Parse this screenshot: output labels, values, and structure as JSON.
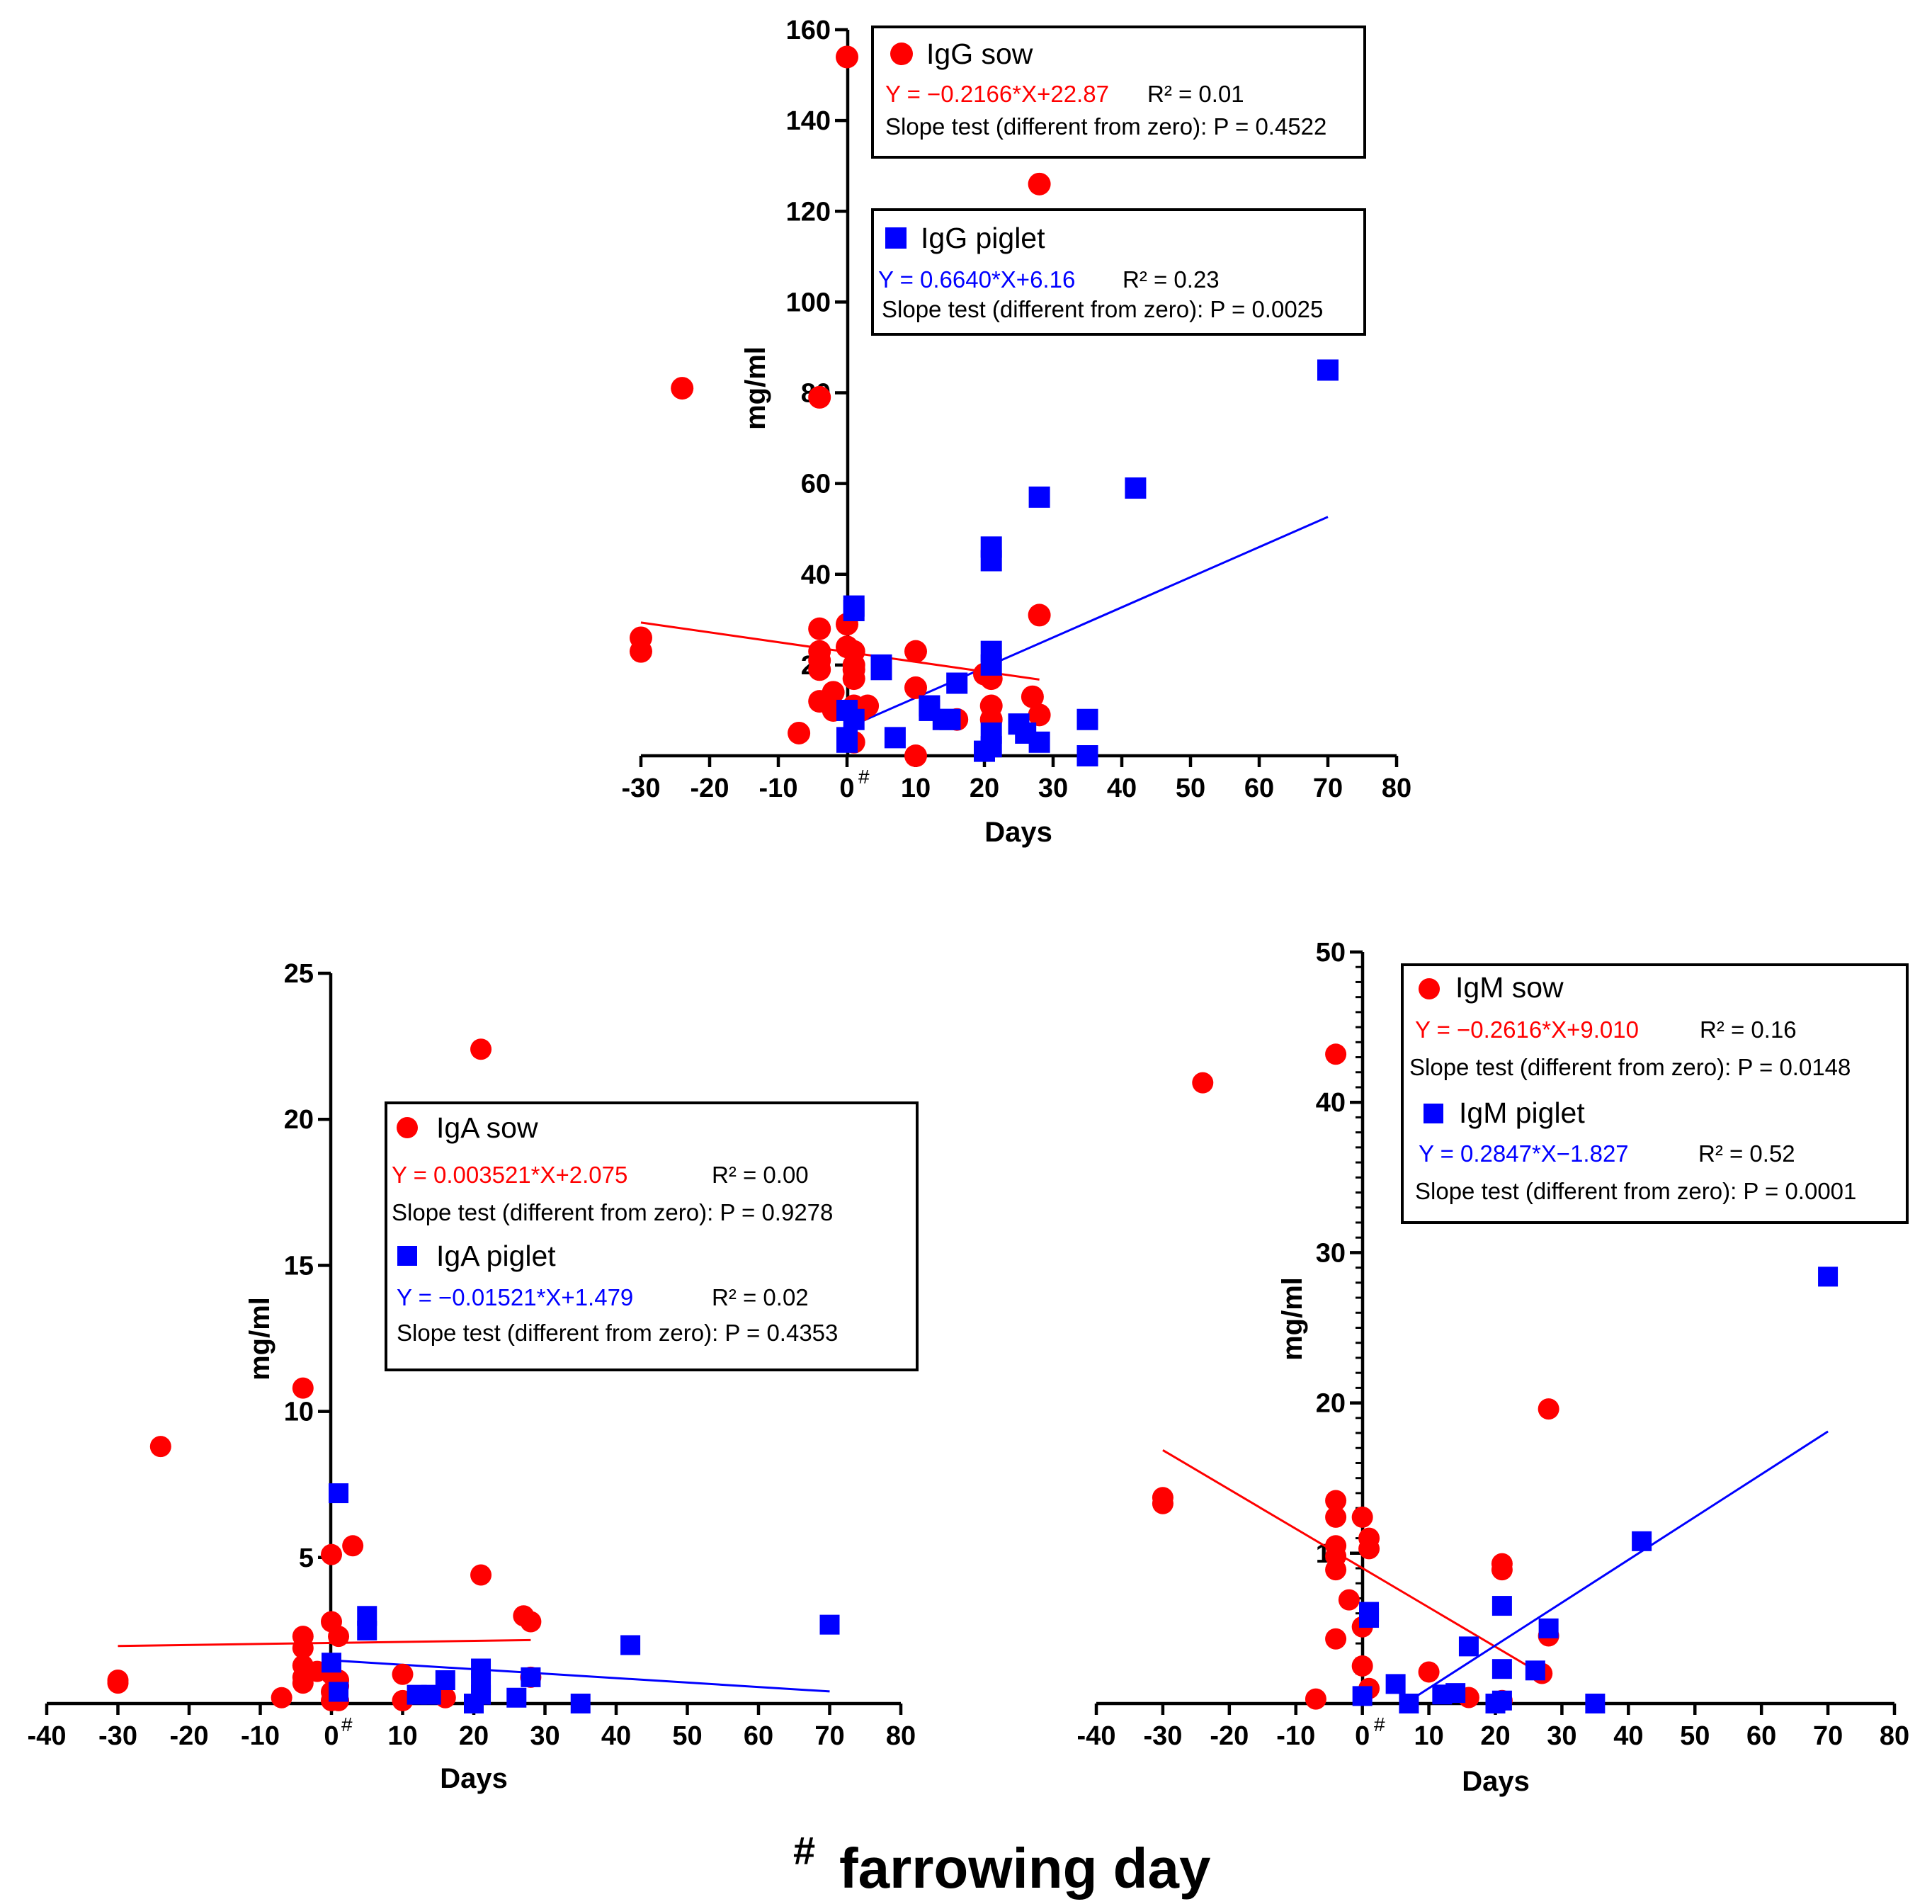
{
  "colors": {
    "sow": "#ff0000",
    "piglet": "#0000ff",
    "axis": "#000000"
  },
  "footnote": {
    "symbol": "#",
    "text": "farrowing day"
  },
  "chart_data": [
    {
      "id": "igg",
      "type": "scatter",
      "xlabel": "Days",
      "ylabel": "mg/ml",
      "xlim": [
        -30,
        80
      ],
      "ylim": [
        0,
        160
      ],
      "xticks": [
        -30,
        -20,
        -10,
        0,
        10,
        20,
        30,
        40,
        50,
        60,
        70,
        80
      ],
      "yticks": [
        20,
        40,
        60,
        80,
        100,
        120,
        140,
        160
      ],
      "yminor": 0,
      "zero_mark": "#",
      "series": [
        {
          "name": "IgG sow",
          "marker": "circle",
          "color": "#ff0000",
          "equation": "Y = −0.2166*X+22.87",
          "r2": "R² = 0.01",
          "slope_test": "Slope test (different from zero): P = 0.4522",
          "fit": {
            "slope": -0.2166,
            "intercept": 22.87,
            "x_range": [
              -30,
              28
            ]
          },
          "points": [
            [
              -30,
              26
            ],
            [
              -30,
              23
            ],
            [
              -24,
              81
            ],
            [
              -7,
              5
            ],
            [
              -4,
              79
            ],
            [
              -4,
              28
            ],
            [
              -4,
              23
            ],
            [
              -4,
              21
            ],
            [
              -4,
              19
            ],
            [
              -4,
              12
            ],
            [
              -2,
              14
            ],
            [
              -2,
              10
            ],
            [
              0,
              154
            ],
            [
              0,
              29
            ],
            [
              0,
              24
            ],
            [
              1,
              23
            ],
            [
              1,
              20
            ],
            [
              1,
              19
            ],
            [
              1,
              17
            ],
            [
              1,
              11
            ],
            [
              1,
              9
            ],
            [
              1,
              3
            ],
            [
              2,
              10
            ],
            [
              3,
              11
            ],
            [
              10,
              23
            ],
            [
              10,
              15
            ],
            [
              10,
              0
            ],
            [
              16,
              8
            ],
            [
              20,
              18
            ],
            [
              21,
              17
            ],
            [
              21,
              11
            ],
            [
              21,
              8
            ],
            [
              27,
              13
            ],
            [
              28,
              126
            ],
            [
              28,
              31
            ],
            [
              28,
              9
            ]
          ]
        },
        {
          "name": "IgG piglet",
          "marker": "square",
          "color": "#0000ff",
          "equation": "Y = 0.6640*X+6.16",
          "r2": "R² = 0.23",
          "slope_test": "Slope test (different from zero): P = 0.0025",
          "fit": {
            "slope": 0.664,
            "intercept": 6.16,
            "x_range": [
              0,
              70
            ]
          },
          "points": [
            [
              0,
              10
            ],
            [
              0,
              4
            ],
            [
              0,
              3
            ],
            [
              1,
              33
            ],
            [
              1,
              32
            ],
            [
              1,
              8
            ],
            [
              5,
              20
            ],
            [
              5,
              19
            ],
            [
              7,
              4
            ],
            [
              12,
              10
            ],
            [
              12,
              11
            ],
            [
              14,
              8
            ],
            [
              15,
              8
            ],
            [
              16,
              16
            ],
            [
              20,
              1
            ],
            [
              21,
              46
            ],
            [
              21,
              43
            ],
            [
              21,
              23
            ],
            [
              21,
              20
            ],
            [
              21,
              5
            ],
            [
              21,
              2
            ],
            [
              25,
              7
            ],
            [
              26,
              5
            ],
            [
              28,
              57
            ],
            [
              28,
              3
            ],
            [
              35,
              8
            ],
            [
              35,
              0
            ],
            [
              42,
              59
            ],
            [
              70,
              85
            ]
          ]
        }
      ]
    },
    {
      "id": "iga",
      "type": "scatter",
      "xlabel": "Days",
      "ylabel": "mg/ml",
      "xlim": [
        -40,
        80
      ],
      "ylim": [
        0,
        25
      ],
      "xticks": [
        -40,
        -30,
        -20,
        -10,
        0,
        10,
        20,
        30,
        40,
        50,
        60,
        70,
        80
      ],
      "yticks": [
        5,
        10,
        15,
        20,
        25
      ],
      "yminor": 0,
      "zero_mark": "#",
      "series": [
        {
          "name": "IgA sow",
          "marker": "circle",
          "color": "#ff0000",
          "equation": "Y = 0.003521*X+2.075",
          "r2": "R² = 0.00",
          "slope_test": "Slope test (different from zero): P = 0.9278",
          "fit": {
            "slope": 0.003521,
            "intercept": 2.075,
            "x_range": [
              -30,
              28
            ]
          },
          "points": [
            [
              -30,
              0.8
            ],
            [
              -30,
              0.7
            ],
            [
              -24,
              8.8
            ],
            [
              -7,
              0.2
            ],
            [
              -4,
              10.8
            ],
            [
              -4,
              2.3
            ],
            [
              -4,
              1.9
            ],
            [
              -4,
              1.3
            ],
            [
              -4,
              0.9
            ],
            [
              -4,
              0.7
            ],
            [
              -2,
              1.1
            ],
            [
              0,
              5.1
            ],
            [
              0,
              2.8
            ],
            [
              0,
              1.0
            ],
            [
              0,
              0.4
            ],
            [
              0,
              0.1
            ],
            [
              1,
              2.3
            ],
            [
              1,
              0.8
            ],
            [
              1,
              0.6
            ],
            [
              1,
              0.1
            ],
            [
              3,
              5.4
            ],
            [
              10,
              1.0
            ],
            [
              10,
              0.1
            ],
            [
              16,
              0.2
            ],
            [
              21,
              22.4
            ],
            [
              21,
              4.4
            ],
            [
              27,
              3.0
            ],
            [
              28,
              2.8
            ],
            [
              28,
              0.9
            ]
          ]
        },
        {
          "name": "IgA piglet",
          "marker": "square",
          "color": "#0000ff",
          "equation": "Y = −0.01521*X+1.479",
          "r2": "R² = 0.02",
          "slope_test": "Slope test (different from zero): P = 0.4353",
          "fit": {
            "slope": -0.01521,
            "intercept": 1.479,
            "x_range": [
              0,
              70
            ]
          },
          "points": [
            [
              0,
              1.4
            ],
            [
              1,
              7.2
            ],
            [
              1,
              0.4
            ],
            [
              5,
              3.0
            ],
            [
              5,
              2.5
            ],
            [
              12,
              0.3
            ],
            [
              14,
              0.3
            ],
            [
              16,
              0.8
            ],
            [
              20,
              0.0
            ],
            [
              21,
              1.2
            ],
            [
              21,
              0.7
            ],
            [
              21,
              0.3
            ],
            [
              26,
              0.2
            ],
            [
              28,
              0.9
            ],
            [
              35,
              0.0
            ],
            [
              42,
              2.0
            ],
            [
              70,
              2.7
            ]
          ]
        }
      ]
    },
    {
      "id": "igm",
      "type": "scatter",
      "xlabel": "Days",
      "ylabel": "mg/ml",
      "xlim": [
        -40,
        80
      ],
      "ylim": [
        0,
        50
      ],
      "xticks": [
        -40,
        -30,
        -20,
        -10,
        0,
        10,
        20,
        30,
        40,
        50,
        60,
        70,
        80
      ],
      "yticks": [
        10,
        20,
        30,
        40,
        50
      ],
      "yminor": 1,
      "zero_mark": "#",
      "series": [
        {
          "name": "IgM sow",
          "marker": "circle",
          "color": "#ff0000",
          "equation": "Y = −0.2616*X+9.010",
          "r2": "R² = 0.16",
          "slope_test": "Slope test (different from zero): P = 0.0148",
          "fit": {
            "slope": -0.2616,
            "intercept": 9.01,
            "x_range": [
              -30,
              27
            ]
          },
          "points": [
            [
              -30,
              13.7
            ],
            [
              -30,
              13.3
            ],
            [
              -24,
              41.3
            ],
            [
              -7,
              0.3
            ],
            [
              -4,
              43.2
            ],
            [
              -4,
              13.5
            ],
            [
              -4,
              12.4
            ],
            [
              -4,
              10.5
            ],
            [
              -4,
              9.8
            ],
            [
              -4,
              8.9
            ],
            [
              -4,
              4.3
            ],
            [
              -2,
              6.9
            ],
            [
              0,
              12.4
            ],
            [
              0,
              5.1
            ],
            [
              0,
              2.5
            ],
            [
              1,
              11.0
            ],
            [
              1,
              10.3
            ],
            [
              1,
              1.0
            ],
            [
              10,
              2.1
            ],
            [
              16,
              0.4
            ],
            [
              21,
              9.3
            ],
            [
              21,
              8.9
            ],
            [
              21,
              0.2
            ],
            [
              27,
              2.0
            ],
            [
              28,
              19.6
            ],
            [
              28,
              4.5
            ]
          ]
        },
        {
          "name": "IgM piglet",
          "marker": "square",
          "color": "#0000ff",
          "equation": "Y = 0.2847*X−1.827",
          "r2": "R² = 0.52",
          "slope_test": "Slope test (different from zero): P = 0.0001",
          "fit": {
            "slope": 0.2847,
            "intercept": -1.827,
            "x_range": [
              7,
              70
            ]
          },
          "points": [
            [
              0,
              0.5
            ],
            [
              1,
              6.1
            ],
            [
              1,
              5.7
            ],
            [
              5,
              1.3
            ],
            [
              7,
              0.0
            ],
            [
              12,
              0.6
            ],
            [
              14,
              0.7
            ],
            [
              16,
              3.8
            ],
            [
              20,
              0.0
            ],
            [
              21,
              6.5
            ],
            [
              21,
              2.3
            ],
            [
              21,
              0.2
            ],
            [
              26,
              2.2
            ],
            [
              28,
              5.0
            ],
            [
              35,
              0.0
            ],
            [
              42,
              10.8
            ],
            [
              70,
              28.4
            ]
          ]
        }
      ]
    }
  ]
}
